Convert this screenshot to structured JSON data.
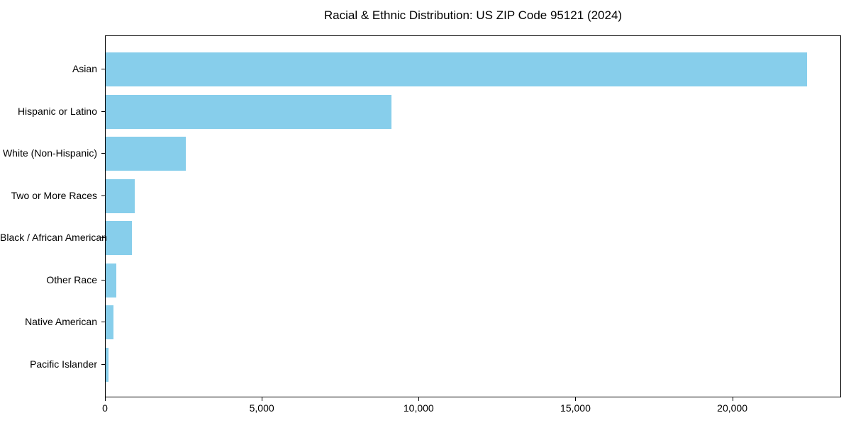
{
  "chart_data": {
    "type": "bar",
    "orientation": "horizontal",
    "title": "Racial & Ethnic Distribution: US ZIP Code 95121 (2024)",
    "xlabel": "",
    "ylabel": "",
    "categories": [
      "Asian",
      "Hispanic or Latino",
      "White (Non-Hispanic)",
      "Two or More Races",
      "Black / African American",
      "Other Race",
      "Native American",
      "Pacific Islander"
    ],
    "values": [
      22350,
      9110,
      2560,
      920,
      840,
      340,
      250,
      100
    ],
    "xlim": [
      0,
      23468
    ],
    "x_ticks": [
      0,
      5000,
      10000,
      15000,
      20000
    ],
    "x_tick_labels": [
      "0",
      "5,000",
      "10,000",
      "15,000",
      "20,000"
    ],
    "grid": false,
    "legend": null,
    "bar_color": "#87CEEB"
  },
  "colors": {
    "bar": "#87CEEB",
    "axis": "#000000",
    "background": "#ffffff",
    "text": "#000000"
  }
}
